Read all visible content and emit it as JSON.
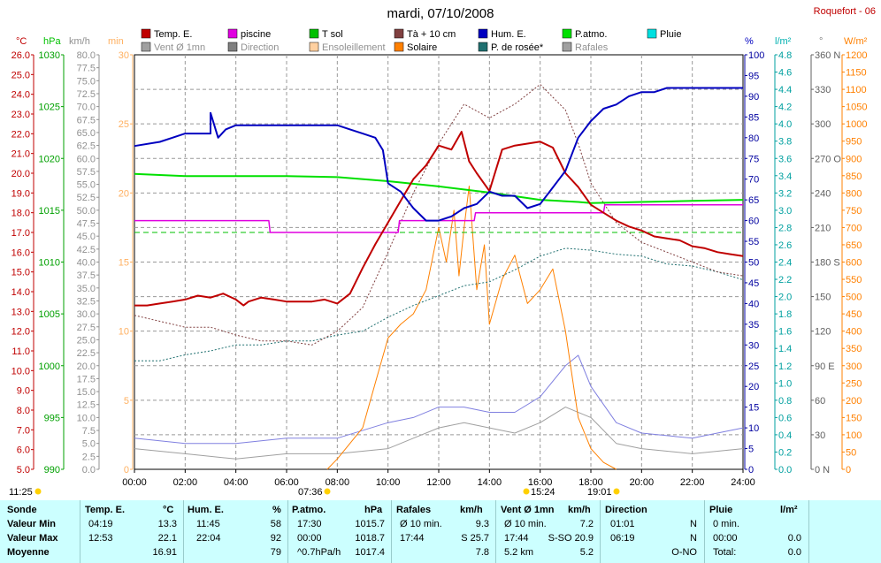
{
  "header": {
    "title": "mardi, 07/10/2008",
    "station": "Roquefort - 06"
  },
  "legend": [
    {
      "label": "Temp. E.",
      "color": "#c00000"
    },
    {
      "label": "piscine",
      "color": "#e000e0"
    },
    {
      "label": "T sol",
      "color": "#00c000"
    },
    {
      "label": "Tà + 10 cm",
      "color": "#804040"
    },
    {
      "label": "Hum. E.",
      "color": "#0000c0"
    },
    {
      "label": "P.atmo.",
      "color": "#00e000"
    },
    {
      "label": "Pluie",
      "color": "#00e0e0"
    },
    {
      "label": "Vent Ø 1mn",
      "color": "#a0a0a0"
    },
    {
      "label": "Direction",
      "color": "#808080"
    },
    {
      "label": "Ensoleillement",
      "color": "#ffd0a0"
    },
    {
      "label": "Solaire",
      "color": "#ff8000"
    },
    {
      "label": "P. de rosée*",
      "color": "#207070"
    },
    {
      "label": "Rafales",
      "color": "#a0a0a0"
    }
  ],
  "axes_units": {
    "temp": "°C",
    "hpa": "hPa",
    "kmh": "km/h",
    "min": "min",
    "pct": "%",
    "lm2": "l/m²",
    "deg": "°",
    "wm2": "W/m²"
  },
  "left_axes": {
    "temp": [
      "26.0",
      "25.0",
      "24.0",
      "23.0",
      "22.0",
      "21.0",
      "20.0",
      "19.0",
      "18.0",
      "17.0",
      "16.0",
      "15.0",
      "14.0",
      "13.0",
      "12.0",
      "11.0",
      "10.0",
      "9.0",
      "8.0",
      "7.0",
      "6.0",
      "5.0"
    ],
    "hpa": [
      "1030",
      "1025",
      "1020",
      "1015",
      "1010",
      "1005",
      "1000",
      "995",
      "990"
    ],
    "kmh": [
      "80.0",
      "77.5",
      "75.0",
      "72.5",
      "70.0",
      "67.5",
      "65.0",
      "62.5",
      "60.0",
      "57.5",
      "55.0",
      "52.5",
      "50.0",
      "47.5",
      "45.0",
      "42.5",
      "40.0",
      "37.5",
      "35.0",
      "32.5",
      "30.0",
      "27.5",
      "25.0",
      "22.5",
      "20.0",
      "17.5",
      "15.0",
      "12.5",
      "10.0",
      "7.5",
      "5.0",
      "2.5",
      "0.0"
    ],
    "min": [
      "30",
      "25",
      "20",
      "15",
      "10",
      "5",
      "0"
    ]
  },
  "right_axes": {
    "pct": [
      "100",
      "95",
      "90",
      "85",
      "80",
      "75",
      "70",
      "65",
      "60",
      "55",
      "50",
      "45",
      "40",
      "35",
      "30",
      "25",
      "20",
      "15",
      "10",
      "5",
      "0"
    ],
    "lm2": [
      "4.8",
      "4.6",
      "4.4",
      "4.2",
      "4.0",
      "3.8",
      "3.6",
      "3.4",
      "3.2",
      "3.0",
      "2.8",
      "2.6",
      "2.4",
      "2.2",
      "2.0",
      "1.8",
      "1.6",
      "1.4",
      "1.2",
      "1.0",
      "0.8",
      "0.6",
      "0.4",
      "0.2",
      "0.0"
    ],
    "deg": [
      "360 N",
      "330",
      "300",
      "270 O",
      "240",
      "210",
      "180 S",
      "150",
      "120",
      "90 E",
      "60",
      "30",
      "0 N"
    ],
    "wm2": [
      "1200",
      "1150",
      "1100",
      "1050",
      "1000",
      "950",
      "900",
      "850",
      "800",
      "750",
      "700",
      "650",
      "600",
      "550",
      "500",
      "450",
      "400",
      "350",
      "300",
      "250",
      "200",
      "150",
      "100",
      "50",
      "0"
    ]
  },
  "x_ticks": [
    "00:00",
    "02:00",
    "04:00",
    "06:00",
    "08:00",
    "10:00",
    "12:00",
    "14:00",
    "16:00",
    "18:00",
    "20:00",
    "22:00",
    "24:00"
  ],
  "sun": {
    "sunrise": "07:36",
    "sunset": "19:01",
    "daylength": "11:25",
    "noon": "15:24"
  },
  "chart_data": {
    "type": "line",
    "x_unit": "hours",
    "xlim": [
      0,
      24
    ],
    "series": [
      {
        "name": "Temp. E.",
        "unit": "°C",
        "ylim": [
          5,
          26
        ],
        "x": [
          0,
          0.5,
          1,
          1.5,
          2,
          2.5,
          3,
          3.5,
          4,
          4.3,
          4.5,
          5,
          5.5,
          6,
          6.5,
          7,
          7.5,
          8,
          8.5,
          9,
          9.5,
          10,
          10.5,
          11,
          11.5,
          12,
          12.5,
          12.9,
          13.2,
          13.5,
          14,
          14.5,
          15,
          15.5,
          16,
          16.5,
          17,
          17.5,
          18,
          18.5,
          19,
          19.5,
          20,
          20.5,
          21,
          21.5,
          22,
          22.5,
          23,
          23.5,
          24
        ],
        "values": [
          13.3,
          13.3,
          13.4,
          13.5,
          13.6,
          13.8,
          13.7,
          13.9,
          13.6,
          13.3,
          13.5,
          13.7,
          13.6,
          13.5,
          13.5,
          13.5,
          13.6,
          13.4,
          13.9,
          15.2,
          16.4,
          17.5,
          18.6,
          19.7,
          20.4,
          21.4,
          21.2,
          22.1,
          20.6,
          20.0,
          19.1,
          21.2,
          21.4,
          21.5,
          21.6,
          21.3,
          20.0,
          19.3,
          18.4,
          18.0,
          17.6,
          17.3,
          17.1,
          16.8,
          16.7,
          16.6,
          16.3,
          16.2,
          16.0,
          15.9,
          15.8
        ]
      },
      {
        "name": "piscine",
        "unit": "°C",
        "ylim": [
          5,
          26
        ],
        "x": [
          0,
          5.3,
          5.35,
          10.4,
          10.45,
          13.4,
          13.45,
          18.5,
          18.55,
          24
        ],
        "values": [
          17.6,
          17.6,
          17.0,
          17.0,
          17.6,
          17.6,
          18.0,
          18.0,
          18.4,
          18.4
        ]
      },
      {
        "name": "T sol",
        "unit": "°C",
        "ylim": [
          5,
          26
        ],
        "x": [
          0,
          24
        ],
        "values": [
          17.0,
          17.0
        ]
      },
      {
        "name": "Hum. E.",
        "unit": "%",
        "ylim": [
          0,
          100
        ],
        "x": [
          0,
          1,
          1.5,
          2,
          3,
          3,
          3.3,
          3.6,
          4,
          5,
          6,
          7,
          8,
          8.5,
          9,
          9.5,
          9.8,
          10,
          10.5,
          11,
          11.5,
          12,
          12.5,
          13,
          13.5,
          14,
          14.5,
          15,
          15.5,
          16,
          16.5,
          17,
          17.5,
          18,
          18.5,
          19,
          19.5,
          20,
          20.5,
          21,
          21.5,
          22,
          22.5,
          23,
          24
        ],
        "values": [
          78,
          79,
          80,
          81,
          81,
          86,
          80,
          82,
          83,
          83,
          83,
          83,
          83,
          82,
          81,
          80,
          77,
          69,
          67,
          63,
          60,
          60,
          61,
          63,
          64,
          67,
          66,
          66,
          63,
          64,
          68,
          72,
          80,
          84,
          87,
          88,
          90,
          91,
          91,
          92,
          92,
          92,
          92,
          92,
          92
        ]
      },
      {
        "name": "P.atmo.",
        "unit": "hPa",
        "ylim": [
          990,
          1030
        ],
        "x": [
          0,
          2,
          4,
          6,
          8,
          10,
          12,
          14,
          16,
          17.5,
          18,
          20,
          22,
          24
        ],
        "values": [
          1018.5,
          1018.3,
          1018.3,
          1018.3,
          1018.2,
          1017.8,
          1017.3,
          1016.7,
          1016.0,
          1015.8,
          1015.7,
          1015.8,
          1015.9,
          1016.0
        ]
      },
      {
        "name": "P. de rosée*",
        "unit": "°C",
        "ylim": [
          5,
          26
        ],
        "x": [
          0,
          1,
          2,
          3,
          4,
          5,
          6,
          7,
          8,
          9,
          10,
          11,
          12,
          13,
          14,
          15,
          16,
          17,
          18,
          19,
          20,
          21,
          22,
          23,
          24
        ],
        "values": [
          10.5,
          10.5,
          10.8,
          11.0,
          11.3,
          11.3,
          11.5,
          11.5,
          11.8,
          12.0,
          12.7,
          13.3,
          13.8,
          14.3,
          14.5,
          15.1,
          15.8,
          16.2,
          16.1,
          15.9,
          15.8,
          15.4,
          15.3,
          15.0,
          14.6
        ]
      },
      {
        "name": "Tà + 10 cm",
        "unit": "°C",
        "ylim": [
          5,
          26
        ],
        "x": [
          0,
          1,
          2,
          3,
          4,
          5,
          6,
          7,
          8,
          9,
          10,
          11,
          12,
          13,
          14,
          15,
          16,
          17,
          17.5,
          18,
          19,
          20,
          21,
          22,
          23,
          24
        ],
        "values": [
          12.8,
          12.5,
          12.2,
          12.2,
          11.8,
          11.5,
          11.5,
          11.3,
          12.0,
          13.2,
          16.0,
          19.0,
          21.5,
          23.5,
          22.8,
          23.5,
          24.5,
          23.2,
          21.5,
          19.5,
          17.5,
          16.5,
          16.0,
          15.5,
          15.0,
          14.8
        ]
      },
      {
        "name": "Solaire",
        "unit": "W/m²",
        "ylim": [
          0,
          1200
        ],
        "x": [
          7.6,
          8,
          9,
          9.5,
          10,
          10.5,
          11,
          11.5,
          12,
          12.3,
          12.6,
          12.8,
          13,
          13.2,
          13.5,
          13.8,
          14,
          14.5,
          15,
          15.5,
          16,
          16.5,
          17,
          17.5,
          18,
          18.5,
          19
        ],
        "values": [
          0,
          30,
          120,
          250,
          380,
          420,
          450,
          520,
          700,
          600,
          750,
          560,
          700,
          820,
          520,
          650,
          420,
          550,
          620,
          480,
          520,
          580,
          400,
          150,
          60,
          20,
          0
        ]
      },
      {
        "name": "Vent Ø 1mn",
        "unit": "km/h",
        "ylim": [
          0,
          80
        ],
        "x": [
          0,
          2,
          4,
          6,
          8,
          10,
          11,
          12,
          13,
          14,
          15,
          16,
          17,
          18,
          19,
          20,
          22,
          24
        ],
        "values": [
          4,
          3,
          2,
          3,
          3,
          4,
          6,
          8,
          9,
          8,
          7,
          9,
          12,
          10,
          5,
          4,
          3,
          4
        ]
      },
      {
        "name": "Rafales",
        "unit": "km/h",
        "ylim": [
          0,
          80
        ],
        "x": [
          0,
          2,
          4,
          6,
          8,
          10,
          11,
          12,
          13,
          14,
          15,
          16,
          17,
          17.5,
          18,
          19,
          20,
          22,
          24
        ],
        "values": [
          6,
          5,
          5,
          6,
          6,
          9,
          10,
          12,
          12,
          11,
          11,
          14,
          20,
          22,
          16,
          9,
          7,
          6,
          8
        ]
      }
    ]
  },
  "table": {
    "headers": {
      "sonde": "Sonde",
      "temp": "Temp. E.",
      "temp_u": "°C",
      "hum": "Hum. E.",
      "hum_u": "%",
      "patm": "P.atmo.",
      "patm_u": "hPa",
      "raf": "Rafales",
      "raf_u": "km/h",
      "vent": "Vent Ø 1mn",
      "vent_u": "km/h",
      "dir": "Direction",
      "pluie": "Pluie",
      "pluie_u": "l/m²"
    },
    "rows": [
      {
        "label": "Valeur Min",
        "temp_t": "04:19",
        "temp_v": "13.3",
        "hum_t": "11:45",
        "hum_v": "58",
        "patm_t": "17:30",
        "patm_v": "1015.7",
        "raf_t": "Ø 10 min.",
        "raf_v": "9.3",
        "vent_t": "Ø 10 min.",
        "vent_v": "7.2",
        "dir_t": "01:01",
        "dir_v": "N",
        "pluie_t": "0 min.",
        "pluie_v": ""
      },
      {
        "label": "Valeur Max",
        "temp_t": "12:53",
        "temp_v": "22.1",
        "hum_t": "22:04",
        "hum_v": "92",
        "patm_t": "00:00",
        "patm_v": "1018.7",
        "raf_t": "17:44",
        "raf_v": "S 25.7",
        "vent_t": "17:44",
        "vent_v": "S-SO 20.9",
        "dir_t": "06:19",
        "dir_v": "N",
        "pluie_t": "00:00",
        "pluie_v": "0.0"
      },
      {
        "label": "Moyenne",
        "temp_t": "",
        "temp_v": "16.91",
        "hum_t": "",
        "hum_v": "79",
        "patm_t": "^0.7hPa/h",
        "patm_v": "1017.4",
        "raf_t": "",
        "raf_v": "7.8",
        "vent_t": "5.2 km",
        "vent_v": "5.2",
        "dir_t": "",
        "dir_v": "O-NO",
        "pluie_t": "Total:",
        "pluie_v": "0.0"
      }
    ]
  }
}
